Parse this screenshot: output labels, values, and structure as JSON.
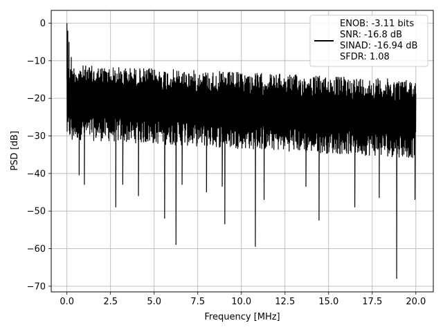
{
  "chart_data": {
    "type": "line",
    "title": "",
    "xlabel": "Frequency [MHz]",
    "ylabel": "PSD [dB]",
    "xlim": [
      -0.9,
      21.0
    ],
    "ylim": [
      -71.5,
      3.4
    ],
    "xticks": [
      0.0,
      2.5,
      5.0,
      7.5,
      10.0,
      12.5,
      15.0,
      17.5,
      20.0
    ],
    "xtick_labels": [
      "0.0",
      "2.5",
      "5.0",
      "7.5",
      "10.0",
      "12.5",
      "15.0",
      "17.5",
      "20.0"
    ],
    "yticks": [
      0,
      -10,
      -20,
      -30,
      -40,
      -50,
      -60,
      -70
    ],
    "ytick_labels": [
      "0",
      "−10",
      "−20",
      "−30",
      "−40",
      "−50",
      "−60",
      "−70"
    ],
    "grid": true,
    "legend_position": "top-right",
    "series": [
      {
        "name": "ENOB: -3.11 bits\nSNR: -16.8 dB\nSINAD: -16.94 dB\nSFDR: 1.08",
        "color": "#000000",
        "noise_band": {
          "x_range": [
            0.0,
            20.0
          ],
          "upper_db": [
            -11,
            -15
          ],
          "lower_db": [
            -31,
            -36
          ],
          "median_db": -24
        },
        "peaks": [
          {
            "x": 0.0,
            "y": 0.0
          },
          {
            "x": 0.05,
            "y": -2.0
          },
          {
            "x": 0.12,
            "y": -5.0
          },
          {
            "x": 0.25,
            "y": -9.0
          }
        ],
        "dips": [
          {
            "x": 0.3,
            "y": -31.0
          },
          {
            "x": 0.7,
            "y": -40.5
          },
          {
            "x": 1.0,
            "y": -43.0
          },
          {
            "x": 2.8,
            "y": -49.0
          },
          {
            "x": 3.2,
            "y": -43.0
          },
          {
            "x": 4.1,
            "y": -46.0
          },
          {
            "x": 5.6,
            "y": -52.0
          },
          {
            "x": 6.25,
            "y": -59.0
          },
          {
            "x": 6.6,
            "y": -43.0
          },
          {
            "x": 8.0,
            "y": -45.0
          },
          {
            "x": 8.9,
            "y": -43.5
          },
          {
            "x": 9.05,
            "y": -53.5
          },
          {
            "x": 10.8,
            "y": -59.5
          },
          {
            "x": 11.3,
            "y": -47.0
          },
          {
            "x": 13.7,
            "y": -43.5
          },
          {
            "x": 14.45,
            "y": -52.5
          },
          {
            "x": 16.5,
            "y": -49.0
          },
          {
            "x": 17.9,
            "y": -46.5
          },
          {
            "x": 18.9,
            "y": -68.0
          },
          {
            "x": 19.95,
            "y": -47.0
          }
        ]
      }
    ]
  }
}
